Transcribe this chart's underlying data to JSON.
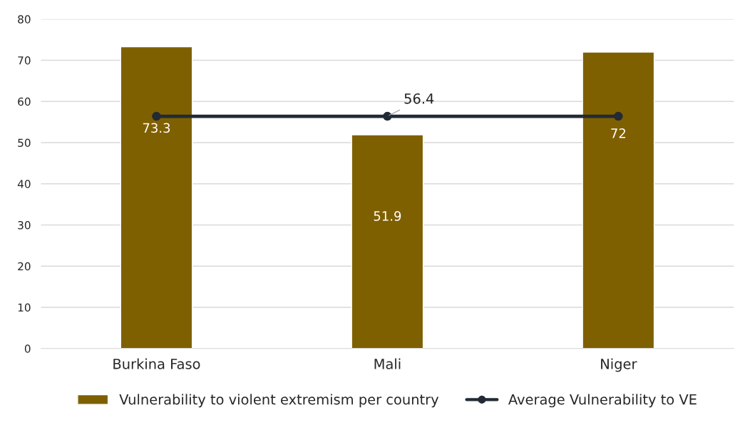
{
  "chart_data": {
    "type": "bar",
    "categories": [
      "Burkina Faso",
      "Mali",
      "Niger"
    ],
    "series": [
      {
        "name": "Vulnerability to violent extremism per country",
        "color": "#7f6000",
        "values": [
          73.3,
          51.9,
          72
        ],
        "value_labels": [
          "73.3",
          "51.9",
          "72"
        ]
      },
      {
        "name": "Average Vulnerability to VE",
        "type": "line",
        "color": "#222a35",
        "values": [
          56.4,
          56.4,
          56.4
        ],
        "value_labels": [
          null,
          "56.4",
          null
        ]
      }
    ],
    "ylim": [
      0,
      80
    ],
    "yticks": [
      0,
      10,
      20,
      30,
      40,
      50,
      60,
      70,
      80
    ],
    "grid": "y",
    "legend": "bottom",
    "marker": "circle",
    "line_style": "solid"
  }
}
